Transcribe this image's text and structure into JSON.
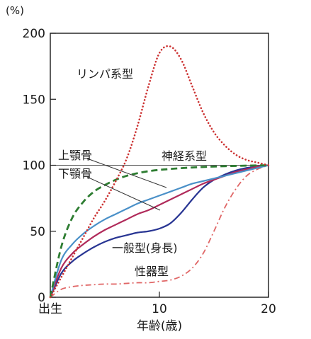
{
  "chart_data": {
    "type": "line",
    "xlabel": "年齢(歳)",
    "ylabel": "(%)",
    "xlim": [
      0,
      20
    ],
    "ylim": [
      0,
      200
    ],
    "x_ticks": [
      {
        "value": 0,
        "label": "出生"
      },
      {
        "value": 10,
        "label": "10"
      },
      {
        "value": 20,
        "label": "20"
      }
    ],
    "y_ticks": [
      {
        "value": 0,
        "label": "0"
      },
      {
        "value": 50,
        "label": "50"
      },
      {
        "value": 100,
        "label": "100"
      },
      {
        "value": 150,
        "label": "150"
      },
      {
        "value": 200,
        "label": "200"
      }
    ],
    "grid": false,
    "reference_line": 100,
    "series": [
      {
        "name": "リンパ系型",
        "color": "#cc3333",
        "style": "dotted",
        "x": [
          0,
          1,
          2,
          3,
          4,
          5,
          6,
          7,
          8,
          9,
          10,
          11,
          12,
          13,
          14,
          15,
          16,
          17,
          18,
          19,
          20
        ],
        "y": [
          0,
          15,
          30,
          45,
          60,
          73,
          88,
          105,
          130,
          160,
          185,
          190,
          180,
          160,
          140,
          125,
          115,
          108,
          104,
          102,
          100
        ]
      },
      {
        "name": "神経系型",
        "color": "#2e7d32",
        "style": "dashed",
        "x": [
          0,
          1,
          2,
          3,
          4,
          5,
          6,
          7,
          8,
          9,
          10,
          11,
          12,
          13,
          14,
          15,
          16,
          17,
          18,
          19,
          20
        ],
        "y": [
          0,
          38,
          60,
          72,
          80,
          85,
          89,
          92,
          94,
          95.5,
          96.5,
          97.2,
          97.8,
          98.3,
          98.7,
          99,
          99.3,
          99.5,
          99.7,
          99.9,
          100
        ]
      },
      {
        "name": "上顎骨",
        "color": "#4a90c8",
        "style": "solid",
        "x": [
          0,
          1,
          2,
          3,
          4,
          5,
          6,
          7,
          8,
          9,
          10,
          11,
          12,
          13,
          14,
          15,
          16,
          17,
          18,
          19,
          20
        ],
        "y": [
          0,
          28,
          40,
          48,
          54,
          59,
          63,
          67,
          71,
          74,
          77,
          80,
          83,
          86,
          88,
          90,
          92,
          94,
          96,
          98,
          100
        ]
      },
      {
        "name": "下顎骨",
        "color": "#b02a5a",
        "style": "solid",
        "x": [
          0,
          1,
          2,
          3,
          4,
          5,
          6,
          7,
          8,
          9,
          10,
          11,
          12,
          13,
          14,
          15,
          16,
          17,
          18,
          19,
          20
        ],
        "y": [
          0,
          22,
          33,
          40,
          46,
          51,
          55,
          59,
          63,
          66,
          70,
          74,
          78,
          82,
          86,
          89,
          92,
          95,
          97,
          99,
          100
        ]
      },
      {
        "name": "一般型(身長)",
        "color": "#283593",
        "style": "solid",
        "x": [
          0,
          1,
          2,
          3,
          4,
          5,
          6,
          7,
          8,
          9,
          10,
          11,
          12,
          13,
          14,
          15,
          16,
          17,
          18,
          19,
          20
        ],
        "y": [
          0,
          18,
          27,
          33,
          38,
          42,
          45,
          47,
          49,
          50,
          52,
          56,
          64,
          74,
          83,
          89,
          93,
          96,
          98,
          99,
          100
        ]
      },
      {
        "name": "性器型",
        "color": "#e06666",
        "style": "dashdot",
        "x": [
          0,
          1,
          2,
          3,
          4,
          5,
          6,
          7,
          8,
          9,
          10,
          11,
          12,
          13,
          14,
          15,
          16,
          17,
          18,
          19,
          20
        ],
        "y": [
          0,
          6,
          8,
          9,
          9.5,
          10,
          10,
          10.5,
          11,
          11,
          12,
          13,
          16,
          22,
          33,
          50,
          68,
          82,
          92,
          97,
          100
        ]
      }
    ]
  }
}
